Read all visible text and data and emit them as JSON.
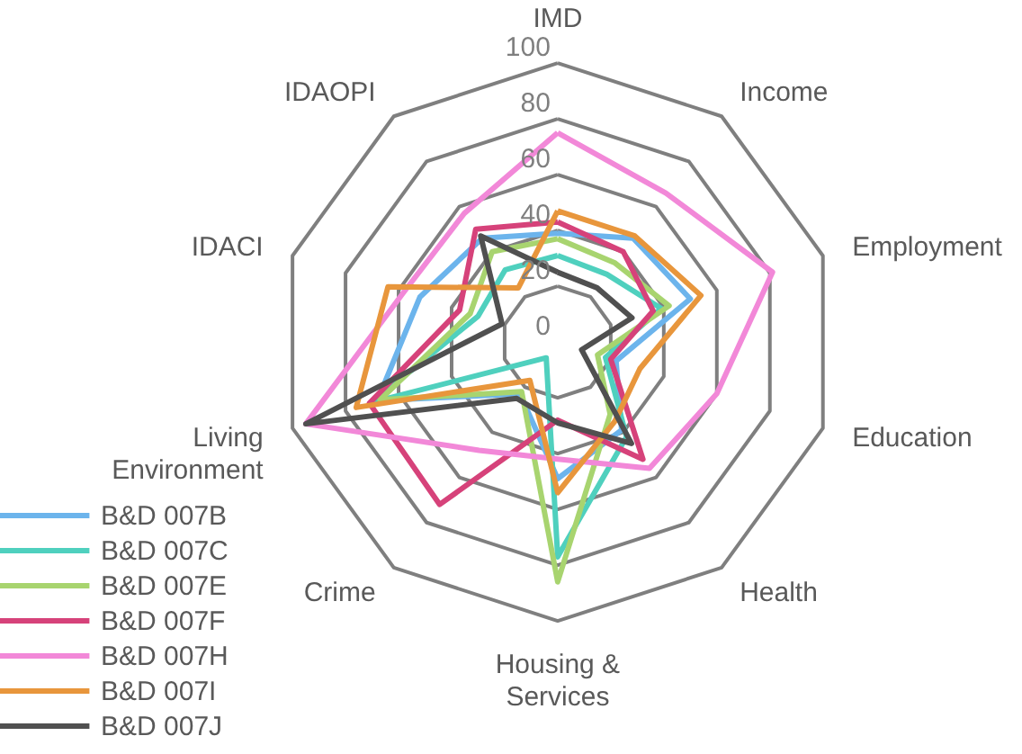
{
  "chart_data": {
    "type": "radar",
    "categories": [
      "IMD",
      "Income",
      "Employment",
      "Education",
      "Health",
      "Housing & Services",
      "Crime",
      "Living Environment",
      "IDACI",
      "IDAOPI"
    ],
    "ylim": [
      0,
      100
    ],
    "yticks": [
      0,
      20,
      40,
      60,
      80,
      100
    ],
    "grid": true,
    "legend": "bottom left",
    "series": [
      {
        "name": "B&D 007B",
        "color": "#6cb4ec",
        "values": [
          39,
          46,
          50,
          22,
          39,
          49,
          23,
          68,
          52,
          46
        ]
      },
      {
        "name": "B&D 007C",
        "color": "#4fd0be",
        "values": [
          31,
          30,
          39,
          18,
          42,
          77,
          7,
          70,
          30,
          32
        ]
      },
      {
        "name": "B&D 007E",
        "color": "#a8d46f",
        "values": [
          37,
          35,
          42,
          15,
          32,
          86,
          22,
          67,
          33,
          40
        ]
      },
      {
        "name": "B&D 007F",
        "color": "#d6427a",
        "values": [
          43,
          40,
          36,
          20,
          52,
          28,
          72,
          71,
          37,
          50
        ]
      },
      {
        "name": "B&D 007H",
        "color": "#f288d8",
        "values": [
          75,
          66,
          81,
          60,
          56,
          42,
          48,
          95,
          58,
          57
        ]
      },
      {
        "name": "B&D 007I",
        "color": "#e8963c",
        "values": [
          47,
          47,
          54,
          31,
          35,
          54,
          17,
          76,
          64,
          24
        ]
      },
      {
        "name": "B&D 007J",
        "color": "#505050",
        "values": [
          25,
          24,
          28,
          9,
          45,
          29,
          25,
          95,
          21,
          47
        ]
      }
    ]
  }
}
